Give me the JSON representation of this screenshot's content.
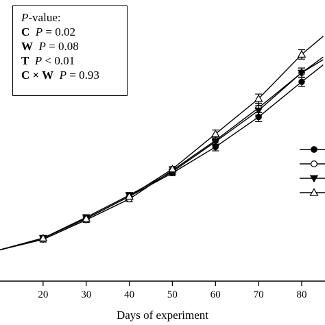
{
  "stats_box": {
    "title_p": "P",
    "title_rest": "-value:",
    "rows": [
      {
        "term": "C",
        "p_italic": "P",
        "value": " = 0.02"
      },
      {
        "term": "W",
        "p_italic": "P",
        "value": " = 0.08"
      },
      {
        "term": "T",
        "p_italic": "P",
        "value": " < 0.01"
      },
      {
        "term": "C × W",
        "p_italic": "P",
        "value": " = 0.93"
      }
    ]
  },
  "chart_data": {
    "type": "line",
    "xlabel": "Days of experiment",
    "ylabel": "",
    "x_ticks": [
      20,
      30,
      40,
      50,
      60,
      70,
      80
    ],
    "xlim": [
      10,
      85
    ],
    "ylim": [
      0,
      100
    ],
    "grid": false,
    "legend_location": "right",
    "series": [
      {
        "marker": "filled-circle",
        "x": [
          10,
          20,
          30,
          40,
          50,
          60,
          70,
          80,
          85
        ],
        "y": [
          12,
          16.5,
          24,
          32.5,
          41.5,
          51.5,
          63,
          76.5,
          83
        ],
        "err": [
          0,
          1,
          1,
          1,
          1,
          1.5,
          1.8,
          1.8,
          0
        ]
      },
      {
        "marker": "open-circle",
        "x": [
          10,
          20,
          30,
          40,
          50,
          60,
          70,
          80,
          85
        ],
        "y": [
          12,
          16,
          23.5,
          31.5,
          42.5,
          54,
          66.5,
          80,
          86
        ],
        "err": [
          0,
          1,
          1,
          1,
          1,
          1.5,
          1.8,
          1.8,
          0
        ]
      },
      {
        "marker": "filled-triangle-down",
        "x": [
          10,
          20,
          30,
          40,
          50,
          60,
          70,
          80,
          85
        ],
        "y": [
          12,
          16.5,
          24.5,
          33,
          42,
          53.5,
          65.5,
          80,
          85
        ],
        "err": [
          0,
          1,
          1,
          1,
          1,
          1.5,
          1.8,
          1.8,
          0
        ]
      },
      {
        "marker": "open-triangle-up",
        "x": [
          10,
          20,
          30,
          40,
          50,
          60,
          70,
          80,
          85
        ],
        "y": [
          12,
          16.5,
          24,
          32.5,
          43,
          56.5,
          70,
          87,
          94
        ],
        "err": [
          0,
          1,
          1,
          1,
          1,
          1.5,
          1.8,
          1.8,
          0
        ]
      }
    ]
  }
}
